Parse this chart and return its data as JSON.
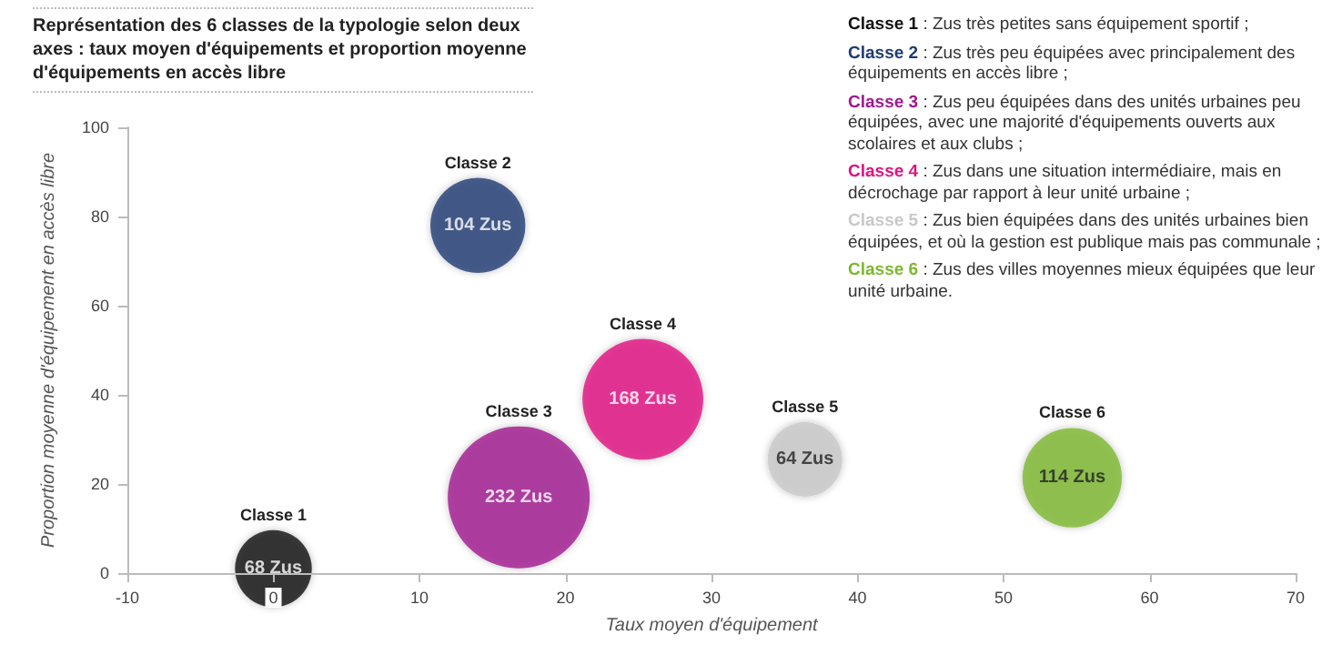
{
  "chart_data": {
    "type": "bubble",
    "title": "Représentation des 6 classes de la typologie selon deux axes : taux moyen d'équipements et proportion moyenne d'équipements en accès libre",
    "xlabel": "Taux moyen d'équipement",
    "ylabel": "Proportion moyenne d'équipement en accès libre",
    "xlim": [
      -10,
      70
    ],
    "xticks": [
      -10,
      0,
      10,
      20,
      30,
      40,
      50,
      60,
      70
    ],
    "ylim": [
      0,
      100
    ],
    "yticks": [
      0,
      20,
      40,
      60,
      80,
      100
    ],
    "grid": false,
    "legend": false,
    "series": [
      {
        "name": "Classe 1",
        "color": "#111111",
        "x": [
          0
        ],
        "values": [
          1
        ],
        "sizes": [
          68
        ],
        "value_labels": [
          "68 Zus"
        ]
      },
      {
        "name": "Classe 2",
        "color": "#1f3b73",
        "x": [
          14
        ],
        "values": [
          78
        ],
        "sizes": [
          104
        ],
        "value_labels": [
          "104 Zus"
        ]
      },
      {
        "name": "Classe 3",
        "color": "#a0198f",
        "x": [
          16.8
        ],
        "values": [
          17
        ],
        "sizes": [
          232
        ],
        "value_labels": [
          "232 Zus"
        ]
      },
      {
        "name": "Classe 4",
        "color": "#e0117f",
        "x": [
          25.3
        ],
        "values": [
          39
        ],
        "sizes": [
          168
        ],
        "value_labels": [
          "168 Zus"
        ]
      },
      {
        "name": "Classe 5",
        "color": "#c8c8c8",
        "x": [
          36.4
        ],
        "values": [
          25.5
        ],
        "sizes": [
          64
        ],
        "value_labels": [
          "64 Zus"
        ]
      },
      {
        "name": "Classe 6",
        "color": "#7cb82f",
        "x": [
          54.7
        ],
        "values": [
          21.4
        ],
        "sizes": [
          114
        ],
        "value_labels": [
          "114 Zus"
        ]
      }
    ],
    "annotations": [
      "Classe 1 : Zus très petites sans équipement sportif ;",
      "Classe 2 : Zus très peu équipées avec principalement des équipements en accès libre ;",
      "Classe 3 : Zus peu équipées dans des unités urbaines peu équipées, avec une majorité d'équipements ouverts aux scolaires et aux clubs ;",
      "Classe 4 : Zus dans une situation intermédiaire, mais en décrochage par rapport à leur unité urbaine ;",
      "Classe 5 : Zus bien équipées dans des unités urbaines bien équipées, et où la gestion est publique mais pas communale ;",
      "Classe 6 : Zus des villes moyennes mieux équipées que leur unité urbaine."
    ]
  }
}
